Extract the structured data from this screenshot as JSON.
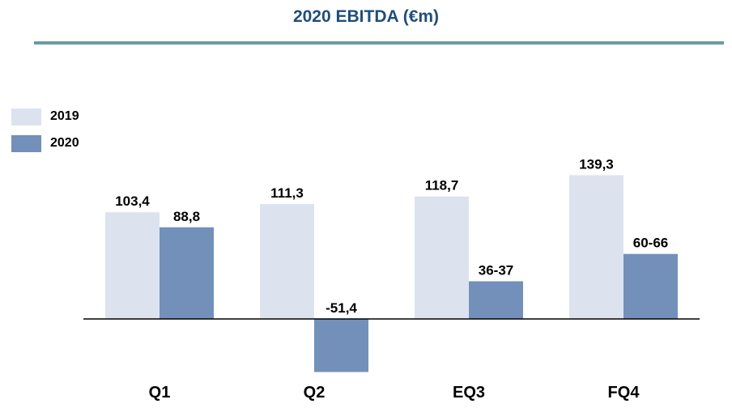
{
  "chart_data": {
    "type": "bar",
    "title": "2020 EBITDA (€m)",
    "categories": [
      "Q1",
      "Q2",
      "EQ3",
      "FQ4"
    ],
    "series": [
      {
        "name": "2019",
        "color": "#dde3ee",
        "values": [
          103.4,
          111.3,
          118.7,
          139.3
        ],
        "labels": [
          "103,4",
          "111,3",
          "118,7",
          "139,3"
        ]
      },
      {
        "name": "2020",
        "color": "#7390bb",
        "values": [
          88.8,
          -51.4,
          36.5,
          63
        ],
        "labels": [
          "88,8",
          "-51,4",
          "36-37",
          "60-66"
        ]
      }
    ],
    "xlabel": "",
    "ylabel": "",
    "ylim": [
      -60,
      160
    ],
    "grid": false,
    "legend": "top-left"
  }
}
